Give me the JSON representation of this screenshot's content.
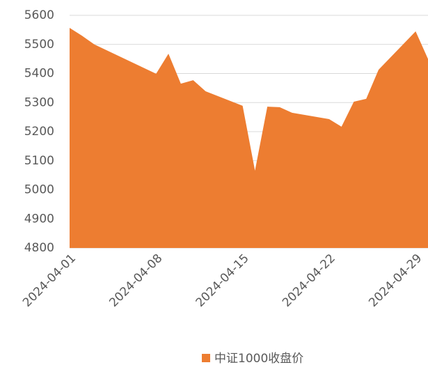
{
  "chart_data": {
    "type": "area",
    "x": [
      "2024-04-01",
      "2024-04-02",
      "2024-04-03",
      "2024-04-08",
      "2024-04-09",
      "2024-04-10",
      "2024-04-11",
      "2024-04-12",
      "2024-04-15",
      "2024-04-16",
      "2024-04-17",
      "2024-04-18",
      "2024-04-19",
      "2024-04-22",
      "2024-04-23",
      "2024-04-24",
      "2024-04-25",
      "2024-04-26",
      "2024-04-29",
      "2024-04-30"
    ],
    "series": [
      {
        "name": "中证1000收盘价",
        "color": "#ED7D31",
        "values": [
          5557,
          5530,
          5500,
          5399,
          5468,
          5365,
          5377,
          5339,
          5289,
          5066,
          5286,
          5284,
          5265,
          5243,
          5217,
          5303,
          5313,
          5413,
          5545,
          5450
        ]
      }
    ],
    "xlim": [
      "2024-04-01",
      "2024-04-30"
    ],
    "xticks": [
      "2024-04-01",
      "2024-04-08",
      "2024-04-15",
      "2024-04-22",
      "2024-04-29"
    ],
    "ylim": [
      4800,
      5600
    ],
    "yticks": [
      4800,
      4900,
      5000,
      5100,
      5200,
      5300,
      5400,
      5500,
      5600
    ],
    "grid": true,
    "legend": "bottom"
  }
}
